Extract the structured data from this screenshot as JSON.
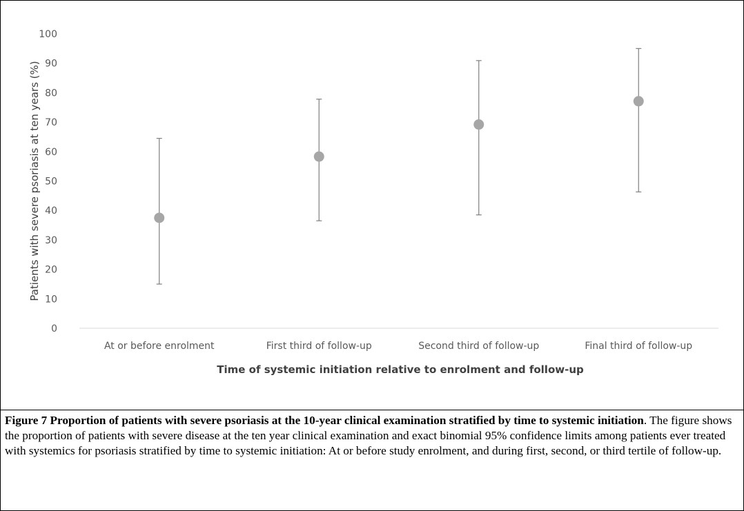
{
  "chart_data": {
    "type": "scatter",
    "categories": [
      "At or before enrolment",
      "First third of follow-up",
      "Second third of follow-up",
      "Final third of follow-up"
    ],
    "series": [
      {
        "values": [
          37.5,
          58.3,
          69.2,
          77.1
        ],
        "ci_lower": [
          15.0,
          36.5,
          38.5,
          46.3
        ],
        "ci_upper": [
          64.5,
          77.8,
          90.9,
          95.0
        ]
      }
    ],
    "xlabel": "Time of systemic initiation relative to enrolment and follow-up",
    "ylabel": "Patients with severe psoriasis at ten years (%)",
    "ylim": [
      0,
      100
    ],
    "yticks": [
      0,
      10,
      20,
      30,
      40,
      50,
      60,
      70,
      80,
      90,
      100
    ],
    "grid": false,
    "marker_color": "#a6a6a6",
    "errorbar_color": "#7f7f7f"
  },
  "caption": {
    "bold": "Figure 7 Proportion of patients with severe psoriasis at the 10-year clinical examination stratified by time to systemic initiation",
    "text": ". The figure shows the proportion of patients with severe disease at the ten year clinical examination and exact binomial 95% confidence limits among patients ever treated with systemics for psoriasis stratified by time to systemic initiation: At or before study enrolment, and during first, second, or third tertile of follow-up."
  }
}
